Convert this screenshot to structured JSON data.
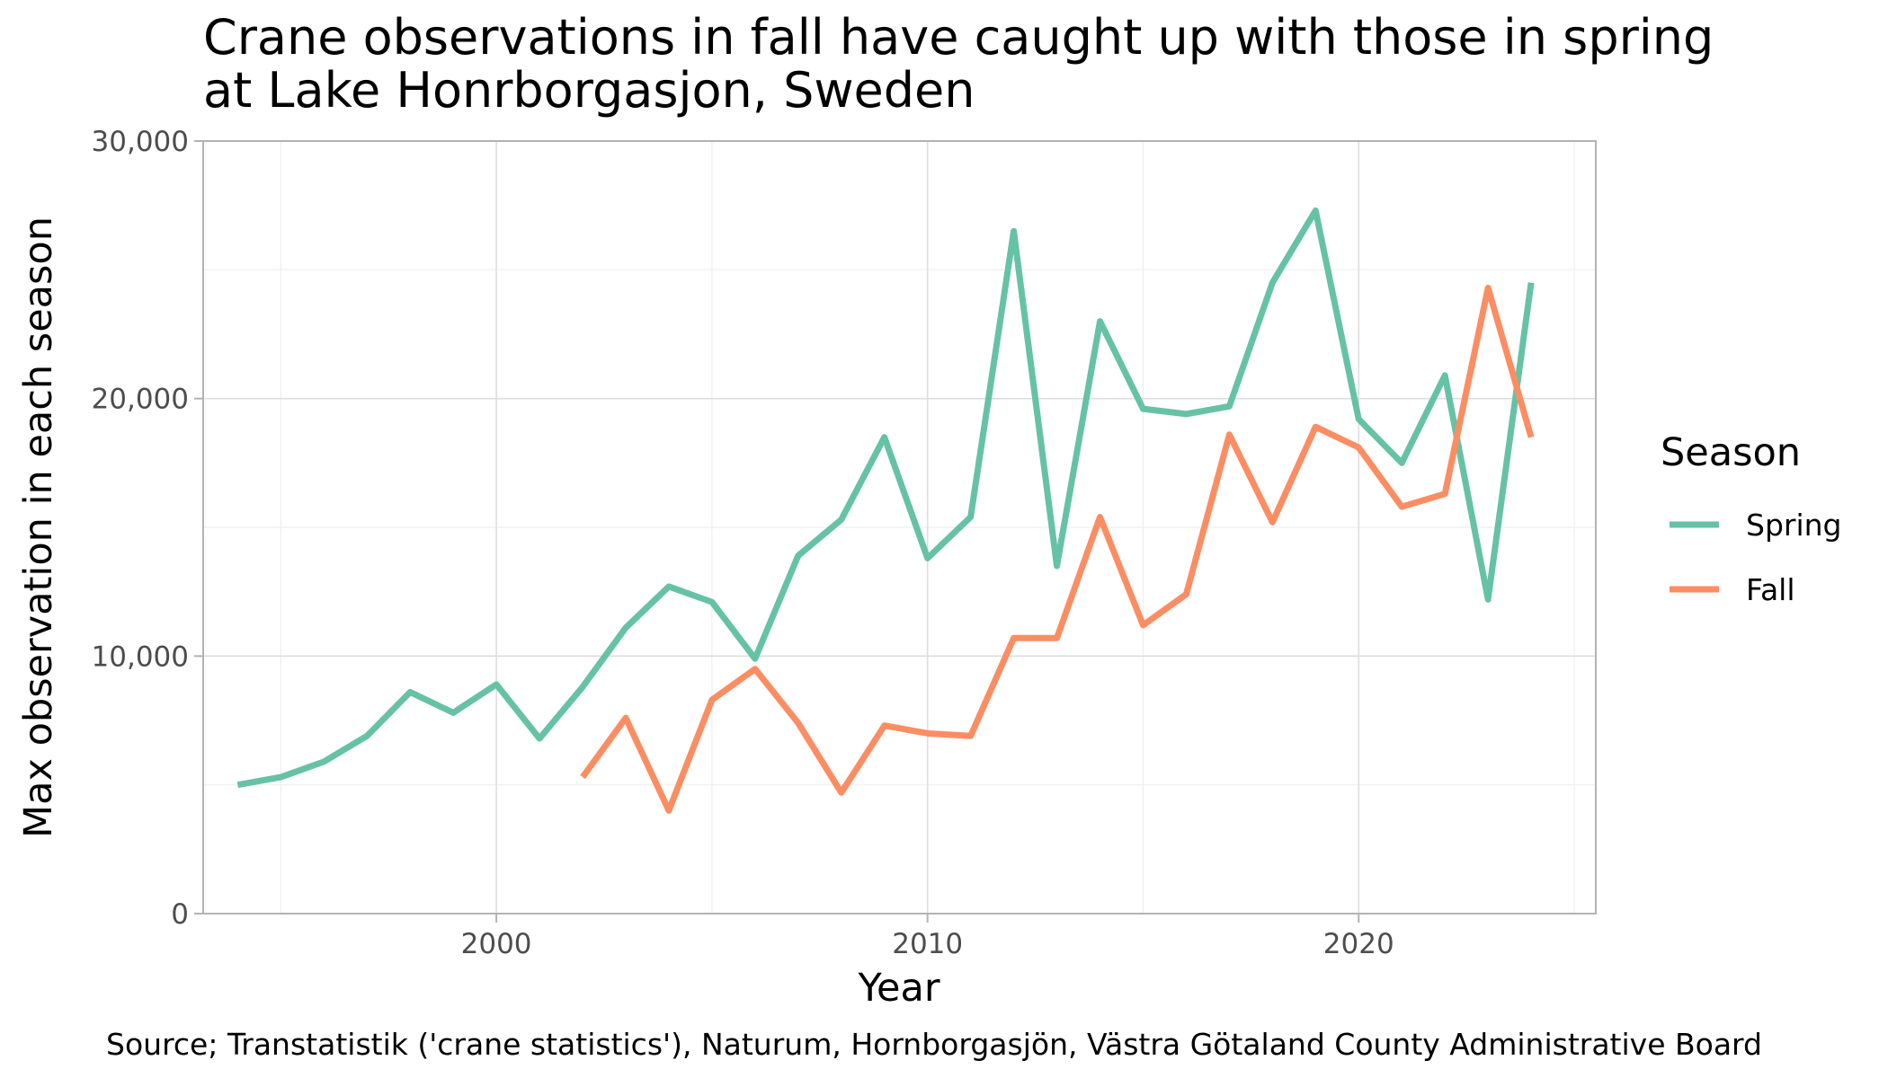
{
  "chart_data": {
    "type": "line",
    "title": "Crane observations in fall have caught up with those in spring",
    "subtitle": "at Lake Honrborgasjon, Sweden",
    "xlabel": "Year",
    "ylabel": "Max observation in each season",
    "caption": "Source; Transtatistik ('crane statistics'), Naturum, Hornborgasjön, Västra Götaland County Administrative Board",
    "xlim": [
      1993.2,
      2025.5
    ],
    "ylim": [
      0,
      30000
    ],
    "x_ticks": [
      2000,
      2010,
      2020
    ],
    "x_tick_labels": [
      "2000",
      "2010",
      "2020"
    ],
    "x_minor_ticks": [
      1995,
      2005,
      2015,
      2025
    ],
    "y_ticks": [
      0,
      10000,
      20000,
      30000
    ],
    "y_tick_labels": [
      "0",
      "10,000",
      "20,000",
      "30,000"
    ],
    "y_minor_ticks": [
      5000,
      15000,
      25000
    ],
    "grid": true,
    "legend": {
      "title": "Season",
      "position": "right"
    },
    "series": [
      {
        "name": "Spring",
        "color": "#66c2a5",
        "x": [
          1994,
          1995,
          1996,
          1997,
          1998,
          1999,
          2000,
          2001,
          2002,
          2003,
          2004,
          2005,
          2006,
          2007,
          2008,
          2009,
          2010,
          2011,
          2012,
          2013,
          2014,
          2015,
          2016,
          2017,
          2018,
          2019,
          2020,
          2021,
          2022,
          2023,
          2024
        ],
        "y": [
          5000,
          5300,
          5900,
          6900,
          8600,
          7800,
          8900,
          6800,
          8800,
          11100,
          12700,
          12100,
          9900,
          13900,
          15300,
          18500,
          13800,
          15400,
          26500,
          13500,
          23000,
          19600,
          19400,
          19700,
          24500,
          27300,
          19200,
          17500,
          20900,
          12200,
          24500
        ]
      },
      {
        "name": "Fall",
        "color": "#fc8d62",
        "x": [
          2002,
          2003,
          2004,
          2005,
          2006,
          2007,
          2008,
          2009,
          2010,
          2011,
          2012,
          2013,
          2014,
          2015,
          2016,
          2017,
          2018,
          2019,
          2020,
          2021,
          2022,
          2023,
          2024
        ],
        "y": [
          5300,
          7600,
          4000,
          8300,
          9500,
          7400,
          4700,
          7300,
          7000,
          6900,
          10700,
          10700,
          15400,
          11200,
          12400,
          18600,
          15200,
          18900,
          18100,
          15800,
          16300,
          24300,
          18500
        ]
      }
    ]
  }
}
